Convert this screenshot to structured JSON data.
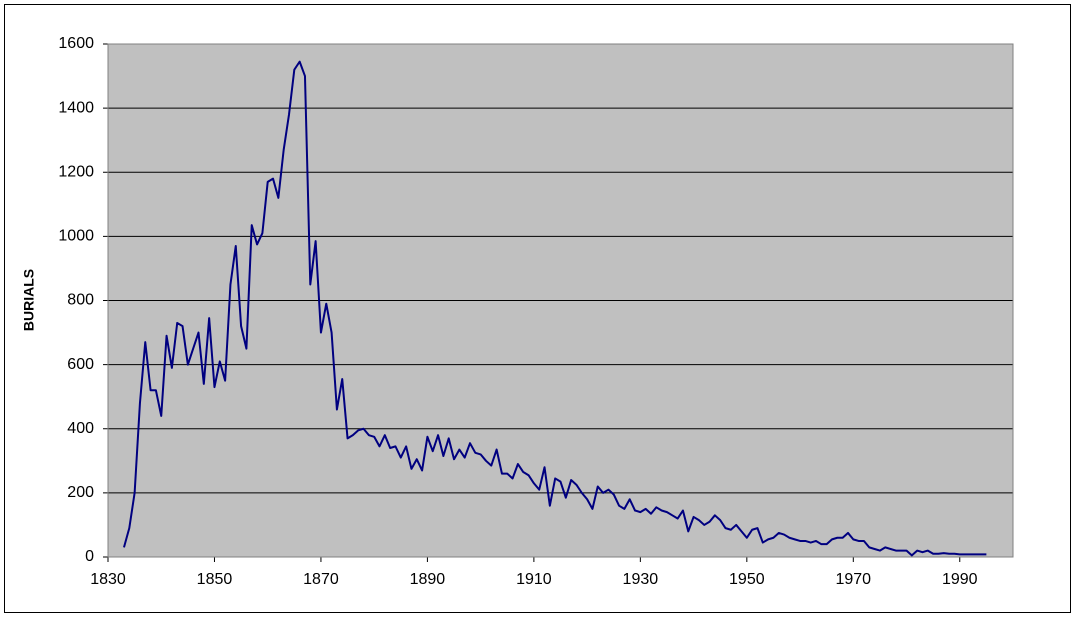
{
  "chart_data": {
    "type": "line",
    "ylabel": "BURIALS",
    "x": [
      1833,
      1834,
      1835,
      1836,
      1837,
      1838,
      1839,
      1840,
      1841,
      1842,
      1843,
      1844,
      1845,
      1846,
      1847,
      1848,
      1849,
      1850,
      1851,
      1852,
      1853,
      1854,
      1855,
      1856,
      1857,
      1858,
      1859,
      1860,
      1861,
      1862,
      1863,
      1864,
      1865,
      1866,
      1867,
      1868,
      1869,
      1870,
      1871,
      1872,
      1873,
      1874,
      1875,
      1876,
      1877,
      1878,
      1879,
      1880,
      1881,
      1882,
      1883,
      1884,
      1885,
      1886,
      1887,
      1888,
      1889,
      1890,
      1891,
      1892,
      1893,
      1894,
      1895,
      1896,
      1897,
      1898,
      1899,
      1900,
      1901,
      1902,
      1903,
      1904,
      1905,
      1906,
      1907,
      1908,
      1909,
      1910,
      1911,
      1912,
      1913,
      1914,
      1915,
      1916,
      1917,
      1918,
      1919,
      1920,
      1921,
      1922,
      1923,
      1924,
      1925,
      1926,
      1927,
      1928,
      1929,
      1930,
      1931,
      1932,
      1933,
      1934,
      1935,
      1936,
      1937,
      1938,
      1939,
      1940,
      1941,
      1942,
      1943,
      1944,
      1945,
      1946,
      1947,
      1948,
      1949,
      1950,
      1951,
      1952,
      1953,
      1954,
      1955,
      1956,
      1957,
      1958,
      1959,
      1960,
      1961,
      1962,
      1963,
      1964,
      1965,
      1966,
      1967,
      1968,
      1969,
      1970,
      1971,
      1972,
      1973,
      1974,
      1975,
      1976,
      1977,
      1978,
      1979,
      1980,
      1981,
      1982,
      1983,
      1984,
      1985,
      1986,
      1987,
      1988,
      1989,
      1990,
      1991,
      1992,
      1993,
      1994,
      1995
    ],
    "series": [
      {
        "name": "Burials",
        "color": "#000080",
        "values": [
          30,
          90,
          200,
          480,
          670,
          520,
          520,
          440,
          690,
          590,
          730,
          720,
          600,
          650,
          700,
          540,
          745,
          530,
          610,
          550,
          850,
          970,
          720,
          650,
          1035,
          975,
          1010,
          1170,
          1180,
          1120,
          1270,
          1380,
          1520,
          1545,
          1500,
          850,
          985,
          700,
          790,
          700,
          460,
          555,
          370,
          380,
          395,
          400,
          380,
          375,
          345,
          380,
          340,
          345,
          310,
          345,
          275,
          305,
          270,
          375,
          330,
          380,
          315,
          370,
          305,
          335,
          310,
          355,
          325,
          320,
          300,
          285,
          335,
          260,
          260,
          245,
          290,
          265,
          255,
          230,
          210,
          280,
          160,
          245,
          235,
          185,
          240,
          225,
          200,
          180,
          150,
          220,
          200,
          210,
          195,
          160,
          150,
          180,
          145,
          140,
          150,
          135,
          155,
          145,
          140,
          130,
          120,
          145,
          80,
          125,
          115,
          100,
          110,
          130,
          115,
          90,
          85,
          100,
          80,
          60,
          85,
          90,
          45,
          55,
          60,
          75,
          70,
          60,
          55,
          50,
          50,
          45,
          50,
          40,
          40,
          55,
          60,
          60,
          75,
          55,
          50,
          50,
          30,
          25,
          20,
          30,
          25,
          20,
          20,
          20,
          5,
          20,
          15,
          20,
          10,
          10,
          12,
          10,
          10,
          8,
          8,
          8,
          8,
          8,
          8
        ]
      }
    ],
    "xlim": [
      1830,
      2000
    ],
    "xticks": [
      1830,
      1850,
      1870,
      1890,
      1910,
      1930,
      1950,
      1970,
      1990
    ],
    "ylim": [
      0,
      1600
    ],
    "yticks": [
      0,
      200,
      400,
      600,
      800,
      1000,
      1200,
      1400,
      1600
    ],
    "grid": true
  }
}
